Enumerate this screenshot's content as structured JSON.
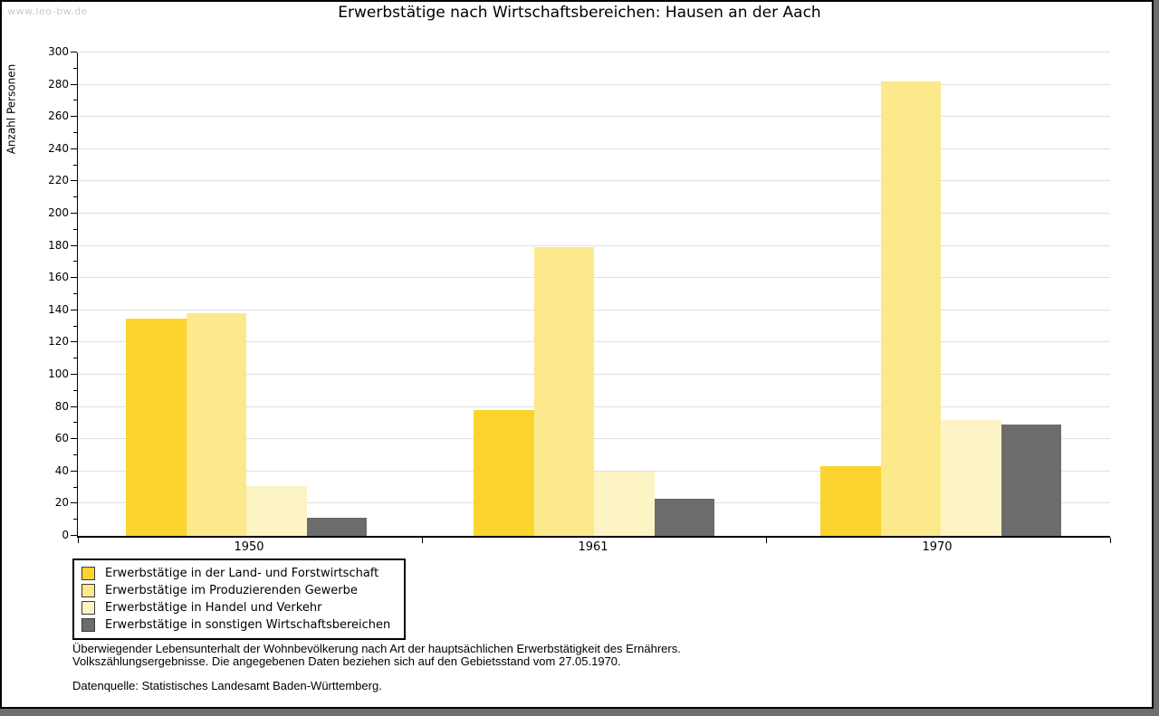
{
  "watermark": "www.leo-bw.de",
  "title": "Erwerbstätige nach Wirtschaftsbereichen: Hausen an der Aach",
  "chart_data": {
    "type": "bar",
    "title": "Erwerbstätige nach Wirtschaftsbereichen: Hausen an der Aach",
    "xlabel": "",
    "ylabel": "Anzahl Personen",
    "ylim": [
      0,
      300
    ],
    "ytick_step": 20,
    "ytick_minor_step": 10,
    "grid": true,
    "legend_position": "bottom-left",
    "categories": [
      "1950",
      "1961",
      "1970"
    ],
    "series": [
      {
        "name": "Erwerbstätige in der Land- und Forstwirtschaft",
        "color": "#fcd42e",
        "values": [
          135,
          78,
          43
        ]
      },
      {
        "name": "Erwerbstätige im Produzierenden Gewerbe",
        "color": "#fce98b",
        "values": [
          138,
          179,
          282
        ]
      },
      {
        "name": "Erwerbstätige in Handel und Verkehr",
        "color": "#fcf4c5",
        "values": [
          31,
          40,
          72
        ]
      },
      {
        "name": "Erwerbstätige in sonstigen Wirtschaftsbereichen",
        "color": "#6c6c6c",
        "values": [
          11,
          23,
          69
        ]
      }
    ],
    "colors": {
      "axis": "#000000",
      "gridline": "#e0e0e0",
      "background": "#ffffff",
      "frame_shadow": "#6e6e6e",
      "watermark": "#cccccc"
    }
  },
  "footer": {
    "line1": "Überwiegender Lebensunterhalt der Wohnbevölkerung nach Art der hauptsächlichen Erwerbstätigkeit des Ernährers.",
    "line2": "Volkszählungsergebnisse. Die angegebenen Daten beziehen sich auf den Gebietsstand vom 27.05.1970.",
    "source": "Datenquelle: Statistisches Landesamt Baden-Württemberg."
  }
}
